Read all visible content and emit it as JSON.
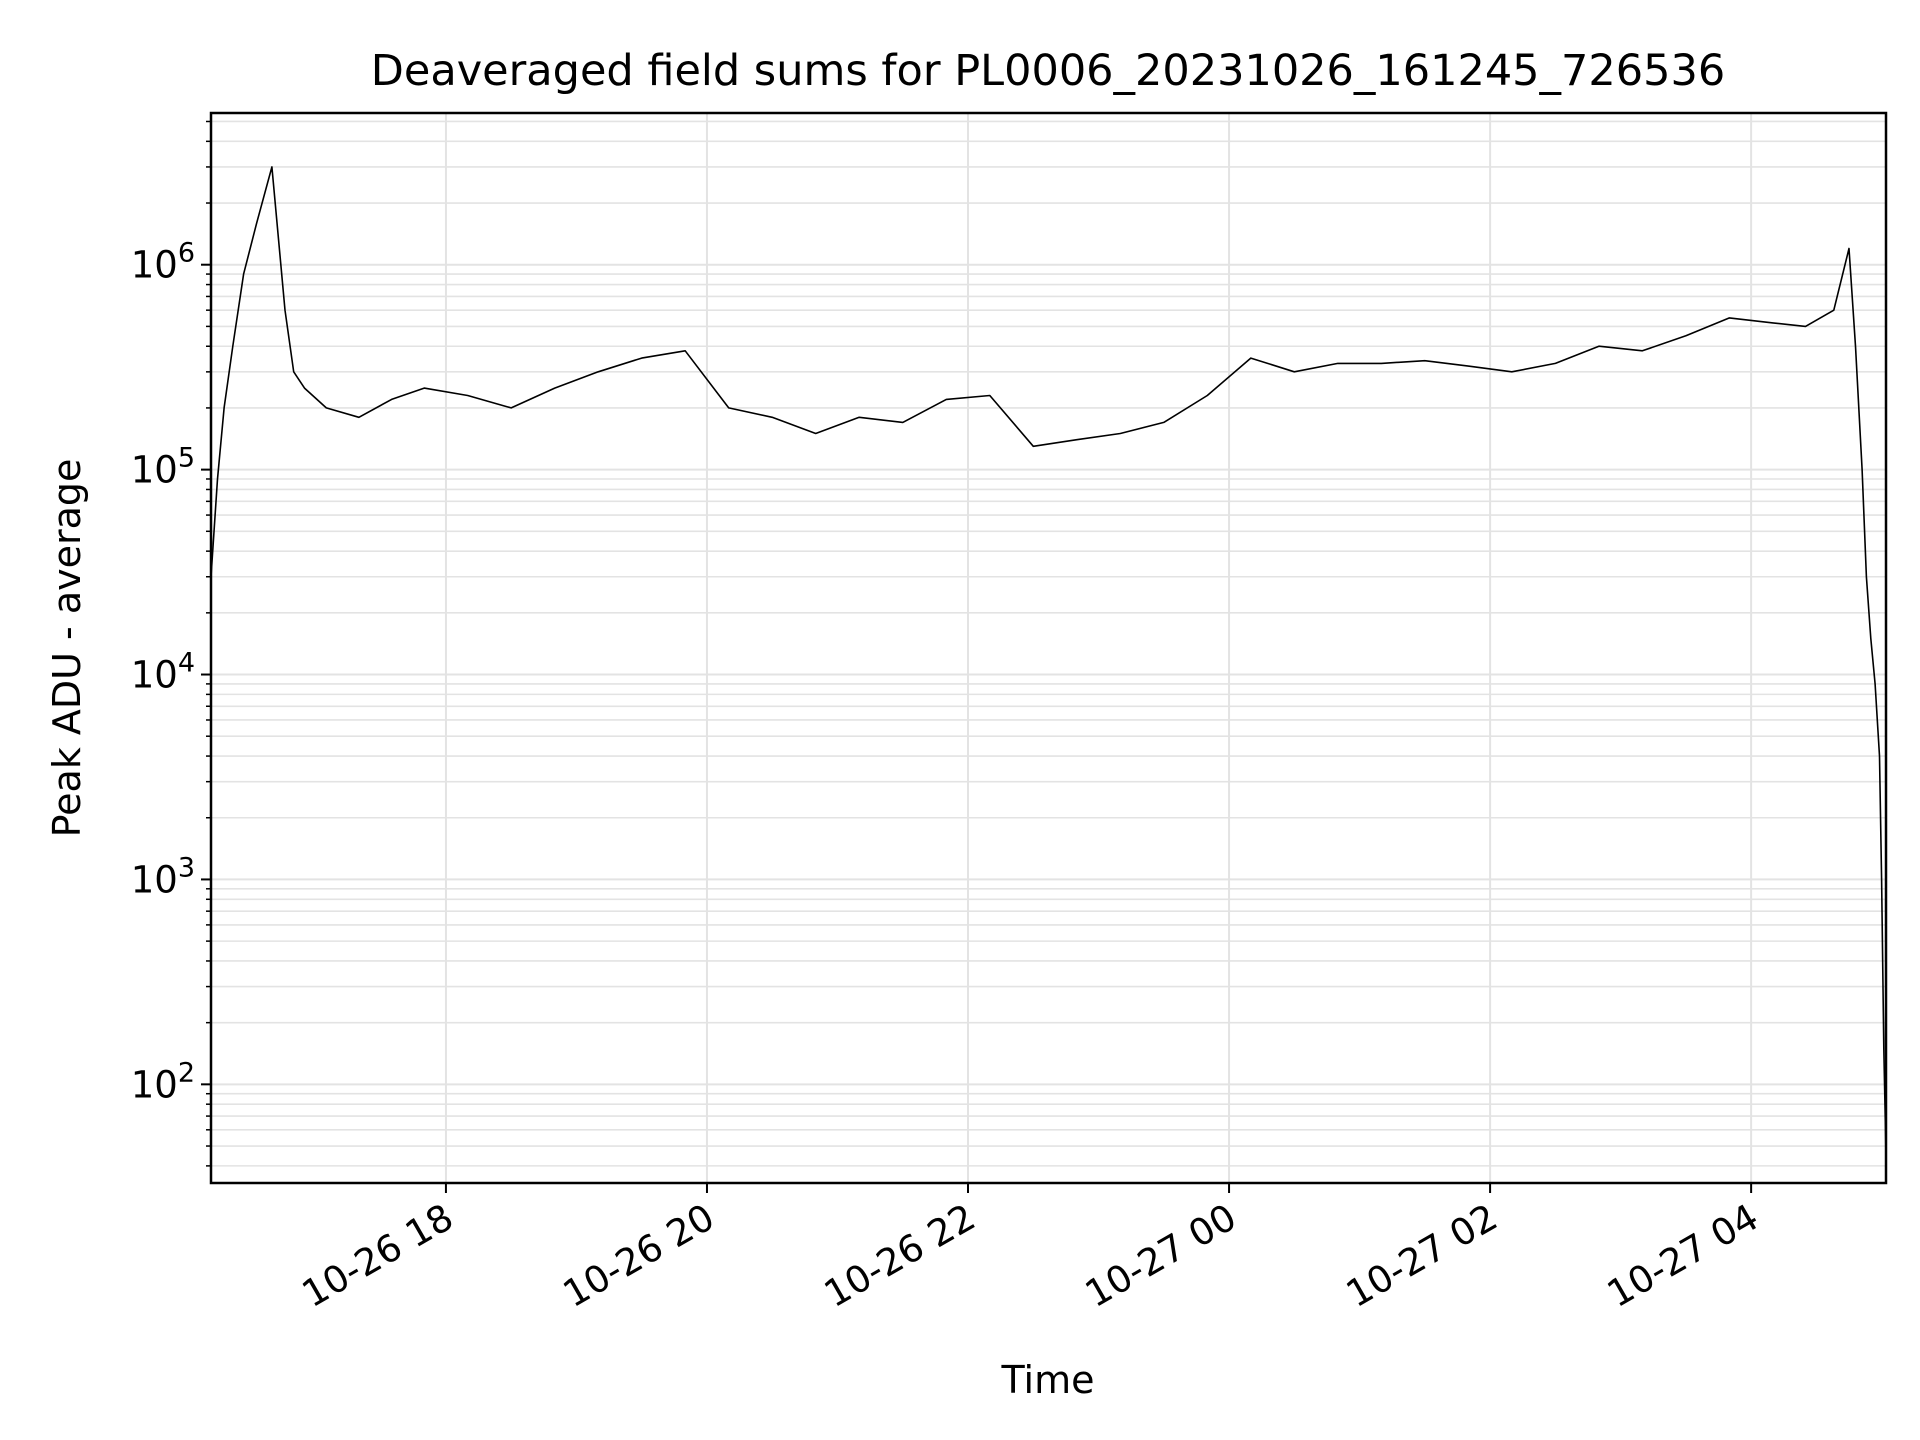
{
  "chart_data": {
    "type": "line",
    "title": "Deaveraged field sums for PL0006_20231026_161245_726536",
    "xlabel": "Time",
    "ylabel": "Peak ADU - average",
    "y_scale": "log",
    "ylim": [
      33,
      5500000
    ],
    "xlim": [
      "2023-10-26 16:12",
      "2023-10-27 05:02"
    ],
    "grid": true,
    "line_color": "#000000",
    "x_ticks": [
      {
        "label": "10-26 18",
        "at": "2023-10-26 18:00"
      },
      {
        "label": "10-26 20",
        "at": "2023-10-26 20:00"
      },
      {
        "label": "10-26 22",
        "at": "2023-10-26 22:00"
      },
      {
        "label": "10-27 00",
        "at": "2023-10-27 00:00"
      },
      {
        "label": "10-27 02",
        "at": "2023-10-27 02:00"
      },
      {
        "label": "10-27 04",
        "at": "2023-10-27 04:00"
      }
    ],
    "y_ticks": [
      {
        "base": "10",
        "exp": "2",
        "value": 100
      },
      {
        "base": "10",
        "exp": "3",
        "value": 1000
      },
      {
        "base": "10",
        "exp": "4",
        "value": 10000
      },
      {
        "base": "10",
        "exp": "5",
        "value": 100000
      },
      {
        "base": "10",
        "exp": "6",
        "value": 1000000
      }
    ],
    "series": [
      {
        "x": [
          "2023-10-26 16:12",
          "2023-10-26 16:15",
          "2023-10-26 16:18",
          "2023-10-26 16:22",
          "2023-10-26 16:27",
          "2023-10-26 16:33",
          "2023-10-26 16:40",
          "2023-10-26 16:46",
          "2023-10-26 16:50",
          "2023-10-26 16:55",
          "2023-10-26 17:05",
          "2023-10-26 17:20",
          "2023-10-26 17:35",
          "2023-10-26 17:50",
          "2023-10-26 18:10",
          "2023-10-26 18:30",
          "2023-10-26 18:50",
          "2023-10-26 19:10",
          "2023-10-26 19:30",
          "2023-10-26 19:50",
          "2023-10-26 20:10",
          "2023-10-26 20:30",
          "2023-10-26 20:50",
          "2023-10-26 21:10",
          "2023-10-26 21:30",
          "2023-10-26 21:50",
          "2023-10-26 22:10",
          "2023-10-26 22:30",
          "2023-10-26 22:50",
          "2023-10-26 23:10",
          "2023-10-26 23:30",
          "2023-10-26 23:50",
          "2023-10-27 00:10",
          "2023-10-27 00:30",
          "2023-10-27 00:50",
          "2023-10-27 01:10",
          "2023-10-27 01:30",
          "2023-10-27 01:50",
          "2023-10-27 02:10",
          "2023-10-27 02:30",
          "2023-10-27 02:50",
          "2023-10-27 03:10",
          "2023-10-27 03:30",
          "2023-10-27 03:50",
          "2023-10-27 04:10",
          "2023-10-27 04:25",
          "2023-10-27 04:38",
          "2023-10-27 04:45",
          "2023-10-27 04:48",
          "2023-10-27 04:51",
          "2023-10-27 04:53",
          "2023-10-27 04:55",
          "2023-10-27 04:57",
          "2023-10-27 04:59",
          "2023-10-27 05:00",
          "2023-10-27 05:01",
          "2023-10-27 05:02"
        ],
        "y": [
          30000,
          90000,
          200000,
          400000,
          900000,
          1600000,
          3000000,
          600000,
          300000,
          250000,
          200000,
          180000,
          220000,
          250000,
          230000,
          200000,
          250000,
          300000,
          350000,
          380000,
          200000,
          180000,
          150000,
          180000,
          170000,
          220000,
          230000,
          130000,
          140000,
          150000,
          170000,
          230000,
          350000,
          300000,
          330000,
          330000,
          340000,
          320000,
          300000,
          330000,
          400000,
          380000,
          450000,
          550000,
          520000,
          500000,
          600000,
          1200000,
          400000,
          100000,
          30000,
          15000,
          9000,
          4000,
          1000,
          150,
          45
        ]
      }
    ]
  }
}
